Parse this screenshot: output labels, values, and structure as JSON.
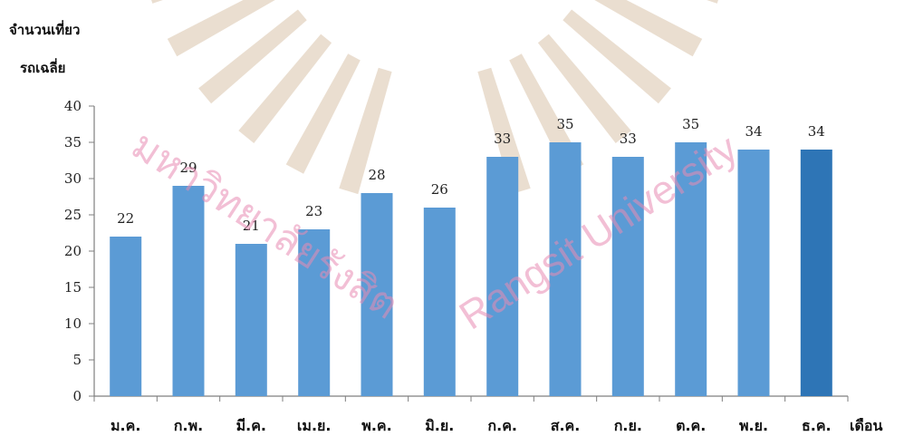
{
  "watermark": {
    "thai": "มหาวิทยาลัยรังสิต",
    "english": "Rangsit University"
  },
  "colors": {
    "bar": "#5b9bd5",
    "bar_last": "#2e75b6",
    "axis": "#7f7f7f",
    "watermark_rays": "#d9c2aa"
  },
  "chart_data": {
    "type": "bar",
    "ylabel_line1": "จำนวนเที่ยว",
    "ylabel_line2": "รถเฉลี่ย",
    "xlabel": "เดือน",
    "ylim": [
      0,
      40
    ],
    "yticks": [
      0,
      5,
      10,
      15,
      20,
      25,
      30,
      35,
      40
    ],
    "grid": false,
    "categories": [
      "ม.ค.",
      "ก.พ.",
      "มี.ค.",
      "เม.ย.",
      "พ.ค.",
      "มิ.ย.",
      "ก.ค.",
      "ส.ค.",
      "ก.ย.",
      "ต.ค.",
      "พ.ย.",
      "ธ.ค."
    ],
    "values": [
      22,
      29,
      21,
      23,
      28,
      26,
      33,
      35,
      33,
      35,
      34,
      34
    ]
  }
}
